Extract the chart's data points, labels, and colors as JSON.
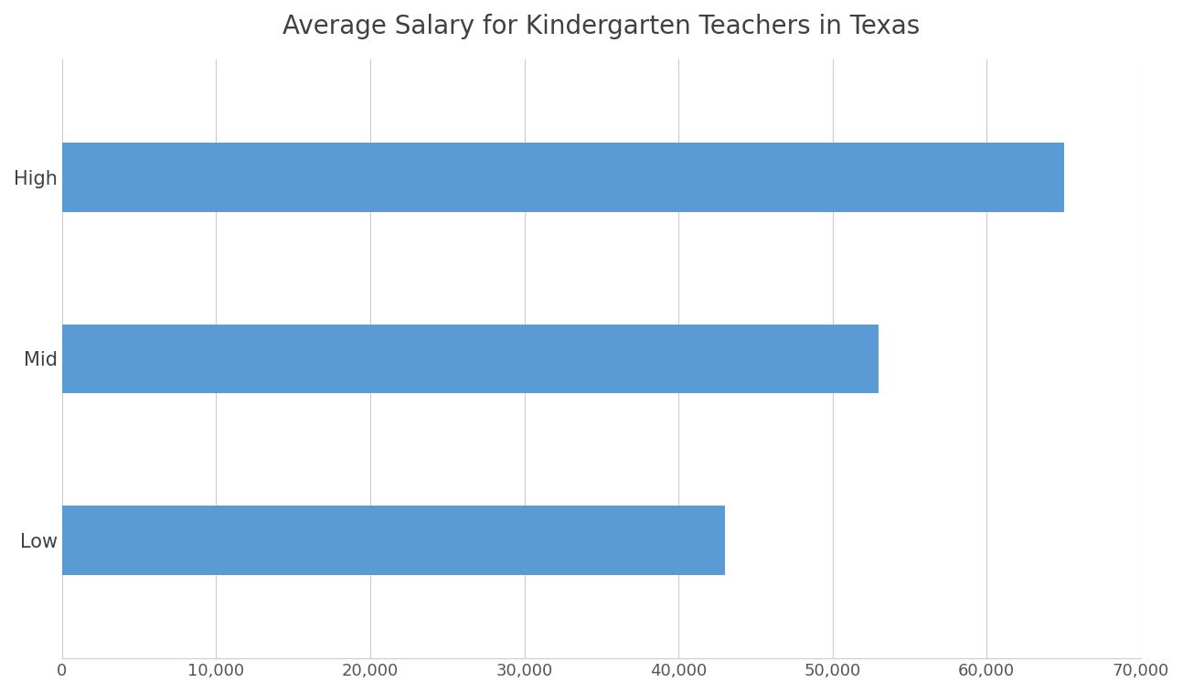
{
  "title": "Average Salary for Kindergarten Teachers in Texas",
  "categories": [
    "High",
    "Mid",
    "Low"
  ],
  "values": [
    65000,
    53000,
    43000
  ],
  "bar_color": "#5B9BD5",
  "xlim": [
    0,
    70000
  ],
  "xticks": [
    0,
    10000,
    20000,
    30000,
    40000,
    50000,
    60000,
    70000
  ],
  "xtick_labels": [
    "0",
    "10,000",
    "20,000",
    "30,000",
    "40,000",
    "50,000",
    "60,000",
    "70,000"
  ],
  "background_color": "#ffffff",
  "title_fontsize": 20,
  "tick_fontsize": 13,
  "ytick_fontsize": 15,
  "bar_height": 0.38,
  "grid_color": "#cccccc"
}
